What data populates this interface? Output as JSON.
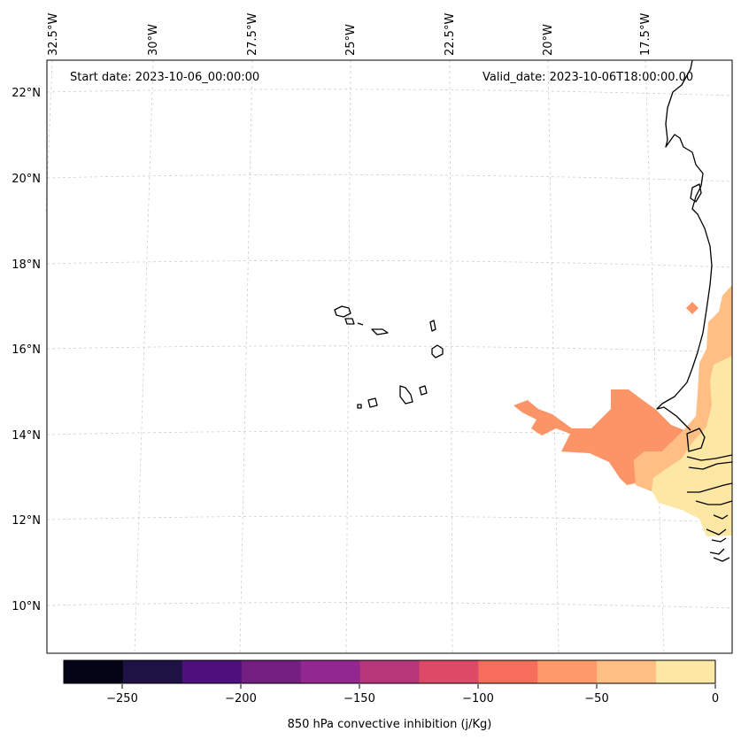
{
  "header": {
    "start_date": "Start date: 2023-10-06_00:00:00",
    "valid_date": "Valid_date: 2023-10-06T18:00:00.00"
  },
  "map": {
    "longitude_labels": [
      "32.5°W",
      "30°W",
      "27.5°W",
      "25°W",
      "22.5°W",
      "20°W",
      "17.5°W"
    ],
    "latitude_labels": [
      "22°N",
      "20°N",
      "18°N",
      "16°N",
      "14°N",
      "12°N",
      "10°N"
    ],
    "colors": {
      "grid": "#cfcfcf",
      "coast": "#000000",
      "band_0_to_-25": "#fde7a5",
      "band_-25_to_-50": "#febe84",
      "band_-50_to_-75": "#fb9466"
    }
  },
  "colorbar": {
    "title": "850 hPa convective inhibition (j/Kg)",
    "tick_labels": [
      "−250",
      "−200",
      "−150",
      "−100",
      "−50",
      "0"
    ],
    "colors": [
      "#050416",
      "#1e1144",
      "#4e117b",
      "#721f81",
      "#92278f",
      "#b63679",
      "#de4968",
      "#f66e5b",
      "#fe9a6a",
      "#febe84",
      "#fde7a5"
    ]
  }
}
